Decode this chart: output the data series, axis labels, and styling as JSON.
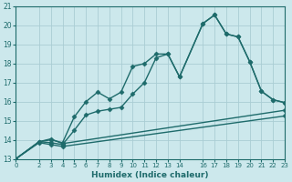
{
  "xlabel": "Humidex (Indice chaleur)",
  "xlim": [
    0,
    23
  ],
  "ylim": [
    13,
    21
  ],
  "xticks": [
    0,
    2,
    3,
    4,
    5,
    6,
    7,
    8,
    9,
    10,
    11,
    12,
    13,
    14,
    16,
    17,
    18,
    19,
    20,
    21,
    22,
    23
  ],
  "yticks": [
    13,
    14,
    15,
    16,
    17,
    18,
    19,
    20,
    21
  ],
  "bg_color": "#cce8ec",
  "grid_color": "#aacdd4",
  "line_color": "#1e6b6b",
  "curve1_x": [
    0,
    2,
    3,
    4,
    5,
    6,
    7,
    8,
    9,
    10,
    11,
    12,
    13,
    14,
    16,
    17,
    18,
    19,
    20,
    21,
    22,
    23
  ],
  "curve1_y": [
    13.0,
    13.9,
    14.0,
    13.85,
    15.2,
    16.0,
    16.5,
    16.15,
    16.5,
    17.85,
    18.0,
    18.5,
    18.5,
    17.3,
    20.1,
    20.55,
    19.55,
    19.4,
    18.1,
    16.55,
    16.1,
    15.95
  ],
  "curve2_x": [
    0,
    2,
    3,
    4,
    5,
    6,
    7,
    8,
    9,
    10,
    11,
    12,
    13,
    14,
    16,
    17,
    18,
    19,
    20,
    21,
    22,
    23
  ],
  "curve2_y": [
    13.0,
    13.9,
    13.85,
    13.75,
    14.5,
    15.3,
    15.5,
    15.6,
    15.7,
    16.4,
    17.0,
    18.3,
    18.5,
    17.3,
    20.1,
    20.55,
    19.55,
    19.4,
    18.1,
    16.55,
    16.1,
    15.95
  ],
  "curve3_x": [
    0,
    2,
    3,
    4,
    23
  ],
  "curve3_y": [
    13.0,
    13.85,
    13.75,
    13.65,
    15.25
  ],
  "curve4_x": [
    0,
    2,
    3,
    4,
    23
  ],
  "curve4_y": [
    13.0,
    13.9,
    14.05,
    13.8,
    15.55
  ],
  "marker_size": 2.5,
  "line_width": 1.0
}
